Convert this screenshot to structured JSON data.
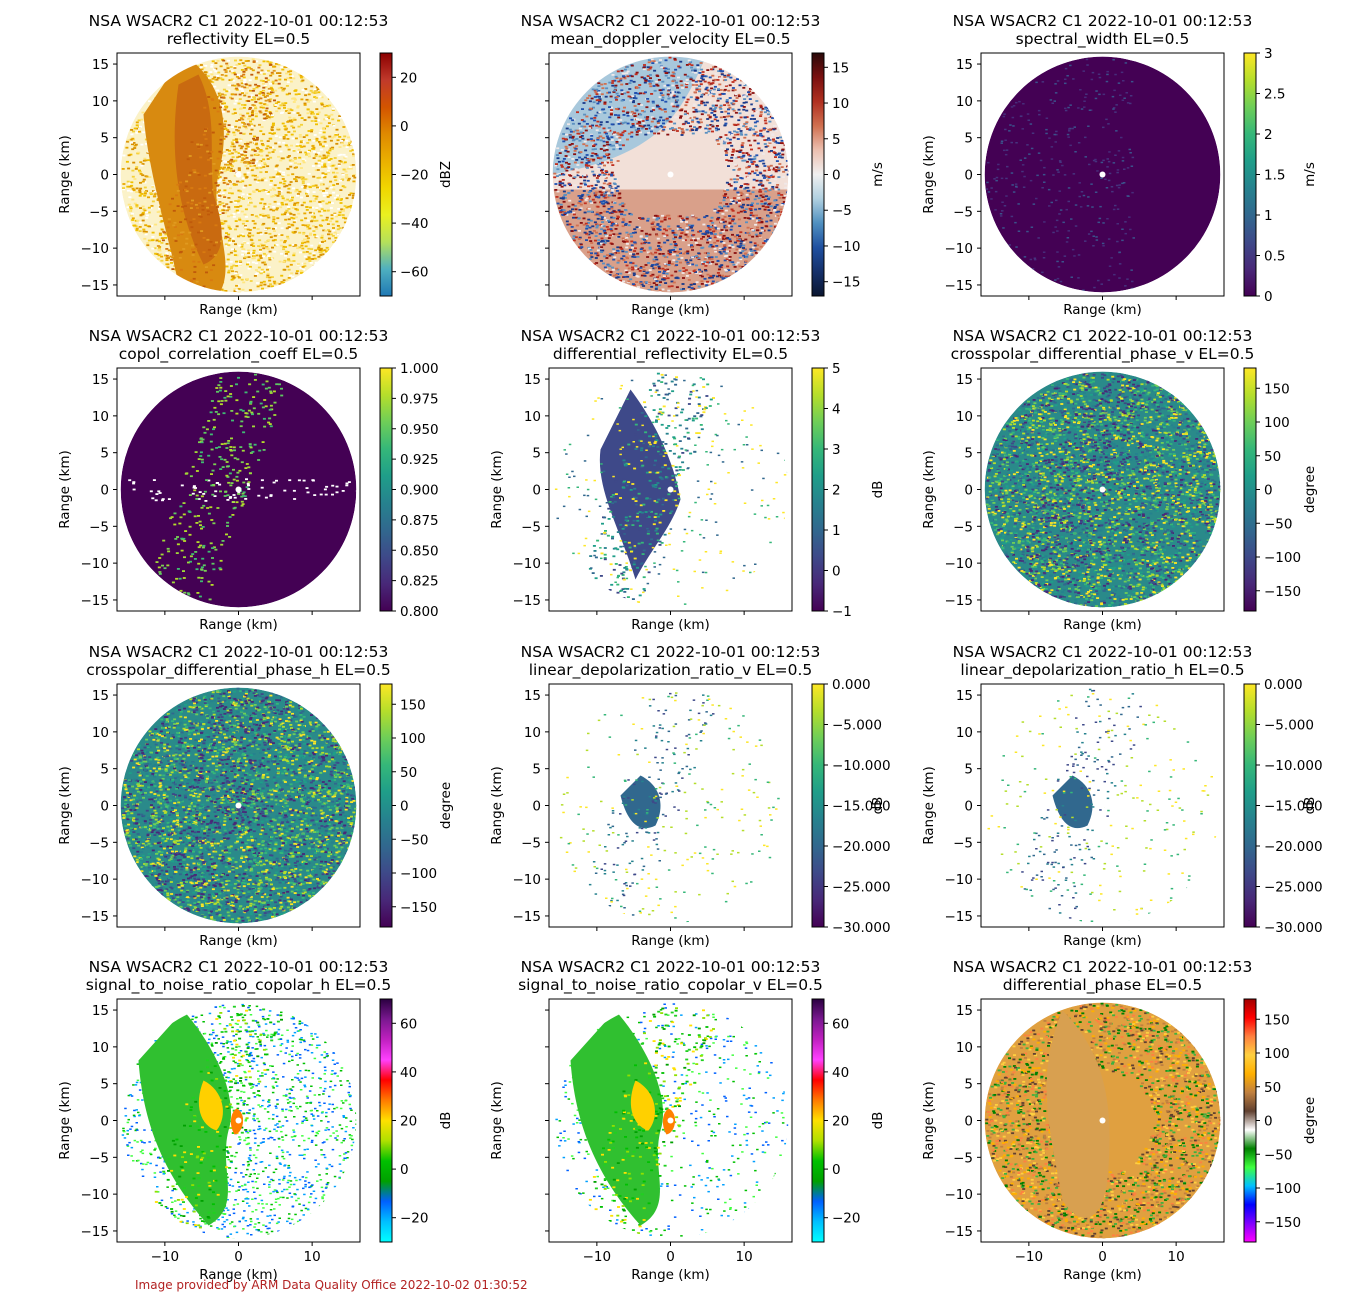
{
  "footer": "Image provided by ARM Data Quality Office 2022-10-02 01:30:52",
  "chart_data": [
    {
      "type": "heatmap",
      "title": "NSA WSACR2 C1 2022-10-01 00:12:53",
      "subtitle": "reflectivity  EL=0.5",
      "xlabel": "Range (km)",
      "ylabel": "Range (km)",
      "xlim": [
        -16.5,
        16.5
      ],
      "ylim": [
        -16.5,
        16.5
      ],
      "xticks": [
        -10,
        0,
        10
      ],
      "yticks": [
        -15,
        -10,
        -5,
        0,
        5,
        10,
        15
      ],
      "colorbar": {
        "label": "dBZ",
        "range": [
          -70,
          30
        ],
        "ticks": [
          -60,
          -40,
          -20,
          0,
          20
        ],
        "cmap": "refl"
      },
      "pattern": "refl"
    },
    {
      "type": "heatmap",
      "title": "NSA WSACR2 C1 2022-10-01 00:12:53",
      "subtitle": "mean_doppler_velocity  EL=0.5",
      "xlabel": "Range (km)",
      "ylabel": "",
      "xlim": [
        -16.5,
        16.5
      ],
      "ylim": [
        -16.5,
        16.5
      ],
      "xticks": [
        -10,
        0,
        10
      ],
      "yticks": [
        -15,
        -10,
        -5,
        0,
        5,
        10,
        15
      ],
      "colorbar": {
        "label": "m/s",
        "range": [
          -17,
          17
        ],
        "ticks": [
          -15,
          -10,
          -5,
          0,
          5,
          10,
          15
        ],
        "cmap": "vel"
      },
      "pattern": "vel"
    },
    {
      "type": "heatmap",
      "title": "NSA WSACR2 C1 2022-10-01 00:12:53",
      "subtitle": "spectral_width  EL=0.5",
      "xlabel": "Range (km)",
      "ylabel": "Range (km)",
      "xlim": [
        -16.5,
        16.5
      ],
      "ylim": [
        -16.5,
        16.5
      ],
      "xticks": [
        -10,
        0,
        10
      ],
      "yticks": [
        -15,
        -10,
        -5,
        0,
        5,
        10,
        15
      ],
      "colorbar": {
        "label": "m/s",
        "range": [
          0,
          3
        ],
        "ticks": [
          0.0,
          0.5,
          1.0,
          1.5,
          2.0,
          2.5,
          3.0
        ],
        "cmap": "viridis"
      },
      "pattern": "sw"
    },
    {
      "type": "heatmap",
      "title": "NSA WSACR2 C1 2022-10-01 00:12:53",
      "subtitle": "copol_correlation_coeff  EL=0.5",
      "xlabel": "Range (km)",
      "ylabel": "Range (km)",
      "xlim": [
        -16.5,
        16.5
      ],
      "ylim": [
        -16.5,
        16.5
      ],
      "xticks": [
        -10,
        0,
        10
      ],
      "yticks": [
        -15,
        -10,
        -5,
        0,
        5,
        10,
        15
      ],
      "colorbar": {
        "label": "",
        "range": [
          0.8,
          1.0
        ],
        "ticks": [
          0.8,
          0.825,
          0.85,
          0.875,
          0.9,
          0.925,
          0.95,
          0.975,
          1.0
        ],
        "cmap": "viridis"
      },
      "pattern": "rho"
    },
    {
      "type": "heatmap",
      "title": "NSA WSACR2 C1 2022-10-01 00:12:53",
      "subtitle": "differential_reflectivity  EL=0.5",
      "xlabel": "Range (km)",
      "ylabel": "Range (km)",
      "xlim": [
        -16.5,
        16.5
      ],
      "ylim": [
        -16.5,
        16.5
      ],
      "xticks": [
        -10,
        0,
        10
      ],
      "yticks": [
        -15,
        -10,
        -5,
        0,
        5,
        10,
        15
      ],
      "colorbar": {
        "label": "dB",
        "range": [
          -1,
          5
        ],
        "ticks": [
          -1,
          0,
          1,
          2,
          3,
          4,
          5
        ],
        "cmap": "viridis"
      },
      "pattern": "zdr"
    },
    {
      "type": "heatmap",
      "title": "NSA WSACR2 C1 2022-10-01 00:12:53",
      "subtitle": "crosspolar_differential_phase_v  EL=0.5",
      "xlabel": "Range (km)",
      "ylabel": "Range (km)",
      "xlim": [
        -16.5,
        16.5
      ],
      "ylim": [
        -16.5,
        16.5
      ],
      "xticks": [
        -10,
        0,
        10
      ],
      "yticks": [
        -15,
        -10,
        -5,
        0,
        5,
        10,
        15
      ],
      "colorbar": {
        "label": "degree",
        "range": [
          -180,
          180
        ],
        "ticks": [
          -150,
          -100,
          -50,
          0,
          50,
          100,
          150
        ],
        "cmap": "viridis"
      },
      "pattern": "phase"
    },
    {
      "type": "heatmap",
      "title": "NSA WSACR2 C1 2022-10-01 00:12:53",
      "subtitle": "crosspolar_differential_phase_h  EL=0.5",
      "xlabel": "Range (km)",
      "ylabel": "Range (km)",
      "xlim": [
        -16.5,
        16.5
      ],
      "ylim": [
        -16.5,
        16.5
      ],
      "xticks": [
        -10,
        0,
        10
      ],
      "yticks": [
        -15,
        -10,
        -5,
        0,
        5,
        10,
        15
      ],
      "colorbar": {
        "label": "degree",
        "range": [
          -180,
          180
        ],
        "ticks": [
          -150,
          -100,
          -50,
          0,
          50,
          100,
          150
        ],
        "cmap": "viridis"
      },
      "pattern": "phase"
    },
    {
      "type": "heatmap",
      "title": "NSA WSACR2 C1 2022-10-01 00:12:53",
      "subtitle": "linear_depolarization_ratio_v  EL=0.5",
      "xlabel": "Range (km)",
      "ylabel": "Range (km)",
      "xlim": [
        -16.5,
        16.5
      ],
      "ylim": [
        -16.5,
        16.5
      ],
      "xticks": [
        -10,
        0,
        10
      ],
      "yticks": [
        -15,
        -10,
        -5,
        0,
        5,
        10,
        15
      ],
      "colorbar": {
        "label": "dB",
        "range": [
          -30,
          0
        ],
        "ticks": [
          -30,
          -25,
          -20,
          -15,
          -10,
          -5,
          0
        ],
        "cmap": "viridis"
      },
      "pattern": "ldr"
    },
    {
      "type": "heatmap",
      "title": "NSA WSACR2 C1 2022-10-01 00:12:53",
      "subtitle": "linear_depolarization_ratio_h  EL=0.5",
      "xlabel": "Range (km)",
      "ylabel": "Range (km)",
      "xlim": [
        -16.5,
        16.5
      ],
      "ylim": [
        -16.5,
        16.5
      ],
      "xticks": [
        -10,
        0,
        10
      ],
      "yticks": [
        -15,
        -10,
        -5,
        0,
        5,
        10,
        15
      ],
      "colorbar": {
        "label": "dB",
        "range": [
          -30,
          0
        ],
        "ticks": [
          -30,
          -25,
          -20,
          -15,
          -10,
          -5,
          0
        ],
        "cmap": "viridis"
      },
      "pattern": "ldr"
    },
    {
      "type": "heatmap",
      "title": "NSA WSACR2 C1 2022-10-01 00:12:53",
      "subtitle": "signal_to_noise_ratio_copolar_h  EL=0.5",
      "xlabel": "Range (km)",
      "ylabel": "Range (km)",
      "xlim": [
        -16.5,
        16.5
      ],
      "ylim": [
        -16.5,
        16.5
      ],
      "xticks": [
        -10,
        0,
        10
      ],
      "yticks": [
        -15,
        -10,
        -5,
        0,
        5,
        10,
        15
      ],
      "colorbar": {
        "label": "dB",
        "range": [
          -30,
          70
        ],
        "ticks": [
          -20,
          0,
          20,
          40,
          60
        ],
        "cmap": "snr"
      },
      "pattern": "snr"
    },
    {
      "type": "heatmap",
      "title": "NSA WSACR2 C1 2022-10-01 00:12:53",
      "subtitle": "signal_to_noise_ratio_copolar_v  EL=0.5",
      "xlabel": "Range (km)",
      "ylabel": "Range (km)",
      "xlim": [
        -16.5,
        16.5
      ],
      "ylim": [
        -16.5,
        16.5
      ],
      "xticks": [
        -10,
        0,
        10
      ],
      "yticks": [
        -15,
        -10,
        -5,
        0,
        5,
        10,
        15
      ],
      "colorbar": {
        "label": "dB",
        "range": [
          -30,
          70
        ],
        "ticks": [
          -20,
          0,
          20,
          40,
          60
        ],
        "cmap": "snr"
      },
      "pattern": "snrv"
    },
    {
      "type": "heatmap",
      "title": "NSA WSACR2 C1 2022-10-01 00:12:53",
      "subtitle": "differential_phase  EL=0.5",
      "xlabel": "Range (km)",
      "ylabel": "Range (km)",
      "xlim": [
        -16.5,
        16.5
      ],
      "ylim": [
        -16.5,
        16.5
      ],
      "xticks": [
        -10,
        0,
        10
      ],
      "yticks": [
        -15,
        -10,
        -5,
        0,
        5,
        10,
        15
      ],
      "colorbar": {
        "label": "degree",
        "range": [
          -180,
          180
        ],
        "ticks": [
          -150,
          -100,
          -50,
          0,
          50,
          100,
          150
        ],
        "cmap": "phidp"
      },
      "pattern": "phidp"
    }
  ]
}
